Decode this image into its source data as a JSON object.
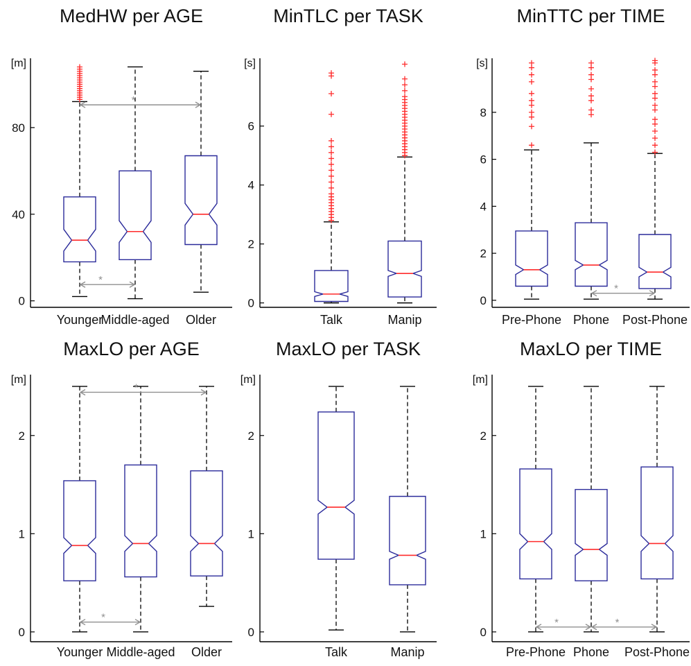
{
  "colors": {
    "box": "#2a2a9a",
    "median": "#ff2a2a",
    "outlier": "#ff2a2a",
    "whisker": "#000000",
    "axis": "#000000",
    "significance": "#909090",
    "text": "#111111"
  },
  "chart_data": [
    {
      "id": "medhw-age",
      "type": "box",
      "notched": true,
      "title": "MedHW per AGE",
      "unit": "[m]",
      "categories": [
        "Younger",
        "Middle-aged",
        "Older"
      ],
      "ylim": [
        -3,
        112
      ],
      "yticks": [
        0,
        40,
        80
      ],
      "boxes": [
        {
          "whisker_low": 2,
          "q1": 18,
          "median": 28,
          "q3": 48,
          "whisker_high": 92,
          "notch": [
            23,
            33
          ],
          "outliers": [
            93,
            94,
            95,
            96,
            97,
            98,
            99,
            100,
            101,
            102,
            103,
            104,
            105,
            106,
            107,
            108
          ]
        },
        {
          "whisker_low": 1,
          "q1": 19,
          "median": 32,
          "q3": 60,
          "whisker_high": 108,
          "notch": [
            27,
            37
          ],
          "outliers": []
        },
        {
          "whisker_low": 4,
          "q1": 26,
          "median": 40,
          "q3": 67,
          "whisker_high": 106,
          "notch": [
            35,
            45
          ],
          "outliers": []
        }
      ],
      "significance": [
        {
          "from": 0,
          "to": 2,
          "y": 90.5,
          "label": "*"
        },
        {
          "from": 0,
          "to": 1,
          "y": 7.5,
          "label": "*"
        }
      ]
    },
    {
      "id": "mintlc-task",
      "type": "box",
      "notched": true,
      "title": "MinTLC per TASK",
      "unit": "[s]",
      "categories": [
        "Talk",
        "Manip"
      ],
      "ylim": [
        -0.15,
        8.3
      ],
      "yticks": [
        0,
        2,
        4,
        6
      ],
      "boxes": [
        {
          "whisker_low": 0,
          "q1": 0.05,
          "median": 0.3,
          "q3": 1.1,
          "whisker_high": 2.75,
          "notch": [
            0.22,
            0.38
          ],
          "outliers": [
            2.8,
            2.9,
            3.0,
            3.1,
            3.2,
            3.3,
            3.4,
            3.5,
            3.6,
            3.7,
            3.9,
            4.1,
            4.3,
            4.5,
            4.7,
            4.9,
            5.1,
            5.3,
            5.5,
            6.4,
            7.1,
            7.7,
            7.8
          ]
        },
        {
          "whisker_low": 0,
          "q1": 0.2,
          "median": 1.0,
          "q3": 2.1,
          "whisker_high": 4.95,
          "notch": [
            0.9,
            1.1
          ],
          "outliers": [
            5.0,
            5.1,
            5.2,
            5.3,
            5.4,
            5.5,
            5.6,
            5.7,
            5.8,
            5.9,
            6.0,
            6.1,
            6.2,
            6.3,
            6.4,
            6.5,
            6.6,
            6.7,
            6.8,
            6.9,
            7.0,
            7.2,
            7.4,
            7.6,
            8.1
          ]
        }
      ],
      "significance": []
    },
    {
      "id": "minttc-time",
      "type": "box",
      "notched": true,
      "title": "MinTTC per TIME",
      "unit": "[s]",
      "categories": [
        "Pre-Phone",
        "Phone",
        "Post-Phone"
      ],
      "ylim": [
        -0.3,
        10.3
      ],
      "yticks": [
        0,
        2,
        4,
        6,
        8
      ],
      "boxes": [
        {
          "whisker_low": 0.05,
          "q1": 0.6,
          "median": 1.3,
          "q3": 2.95,
          "whisker_high": 6.4,
          "notch": [
            1.1,
            1.5
          ],
          "outliers": [
            6.6,
            7.4,
            7.8,
            8.0,
            8.3,
            8.5,
            8.8,
            9.3,
            9.6,
            9.9,
            10.1
          ]
        },
        {
          "whisker_low": 0.05,
          "q1": 0.6,
          "median": 1.5,
          "q3": 3.3,
          "whisker_high": 6.7,
          "notch": [
            1.3,
            1.7
          ],
          "outliers": [
            7.9,
            8.1,
            8.5,
            8.7,
            9.0,
            9.4,
            9.6,
            9.9,
            10.1
          ]
        },
        {
          "whisker_low": 0.05,
          "q1": 0.5,
          "median": 1.2,
          "q3": 2.8,
          "whisker_high": 6.25,
          "notch": [
            1.0,
            1.4
          ],
          "outliers": [
            6.3,
            6.6,
            6.9,
            7.2,
            7.5,
            7.7,
            8.1,
            8.3,
            8.6,
            8.8,
            9.1,
            9.3,
            9.6,
            9.8,
            10.1,
            10.2
          ]
        }
      ],
      "significance": [
        {
          "from": 1,
          "to": 2,
          "y": 0.3,
          "label": "*"
        }
      ]
    },
    {
      "id": "maxlo-age",
      "type": "box",
      "notched": true,
      "title": "MaxLO per AGE",
      "unit": "[m]",
      "categories": [
        "Younger",
        "Middle-aged",
        "Older"
      ],
      "ylim": [
        -0.1,
        2.62
      ],
      "yticks": [
        0,
        1,
        2
      ],
      "boxes": [
        {
          "whisker_low": 0,
          "q1": 0.52,
          "median": 0.88,
          "q3": 1.54,
          "whisker_high": 2.5,
          "notch": [
            0.8,
            0.96
          ],
          "outliers": []
        },
        {
          "whisker_low": 0,
          "q1": 0.56,
          "median": 0.9,
          "q3": 1.7,
          "whisker_high": 2.5,
          "notch": [
            0.82,
            0.98
          ],
          "outliers": []
        },
        {
          "whisker_low": 0.26,
          "q1": 0.57,
          "median": 0.9,
          "q3": 1.64,
          "whisker_high": 2.5,
          "notch": [
            0.82,
            0.98
          ],
          "outliers": []
        }
      ],
      "significance": [
        {
          "from": 0,
          "to": 2,
          "y": 2.44,
          "label": "*"
        },
        {
          "from": 0,
          "to": 1,
          "y": 0.1,
          "label": "*"
        }
      ]
    },
    {
      "id": "maxlo-task",
      "type": "box",
      "notched": true,
      "title": "MaxLO per TASK",
      "unit": "[m]",
      "categories": [
        "Talk",
        "Manip"
      ],
      "ylim": [
        -0.1,
        2.62
      ],
      "yticks": [
        0,
        1,
        2
      ],
      "boxes": [
        {
          "whisker_low": 0.02,
          "q1": 0.74,
          "median": 1.27,
          "q3": 2.24,
          "whisker_high": 2.5,
          "notch": [
            1.2,
            1.34
          ],
          "outliers": []
        },
        {
          "whisker_low": 0,
          "q1": 0.48,
          "median": 0.78,
          "q3": 1.38,
          "whisker_high": 2.5,
          "notch": [
            0.74,
            0.82
          ],
          "outliers": []
        }
      ],
      "significance": []
    },
    {
      "id": "maxlo-time",
      "type": "box",
      "notched": true,
      "title": "MaxLO per TIME",
      "unit": "[m]",
      "categories": [
        "Pre-Phone",
        "Phone",
        "Post-Phone"
      ],
      "ylim": [
        -0.1,
        2.62
      ],
      "yticks": [
        0,
        1,
        2
      ],
      "boxes": [
        {
          "whisker_low": 0,
          "q1": 0.54,
          "median": 0.92,
          "q3": 1.66,
          "whisker_high": 2.5,
          "notch": [
            0.84,
            1.0
          ],
          "outliers": []
        },
        {
          "whisker_low": 0,
          "q1": 0.52,
          "median": 0.84,
          "q3": 1.45,
          "whisker_high": 2.5,
          "notch": [
            0.78,
            0.9
          ],
          "outliers": []
        },
        {
          "whisker_low": 0,
          "q1": 0.54,
          "median": 0.9,
          "q3": 1.68,
          "whisker_high": 2.5,
          "notch": [
            0.82,
            0.98
          ],
          "outliers": []
        }
      ],
      "significance": [
        {
          "from": 0,
          "to": 1,
          "y": 0.05,
          "label": "*"
        },
        {
          "from": 1,
          "to": 2,
          "y": 0.05,
          "label": "*"
        }
      ]
    }
  ]
}
